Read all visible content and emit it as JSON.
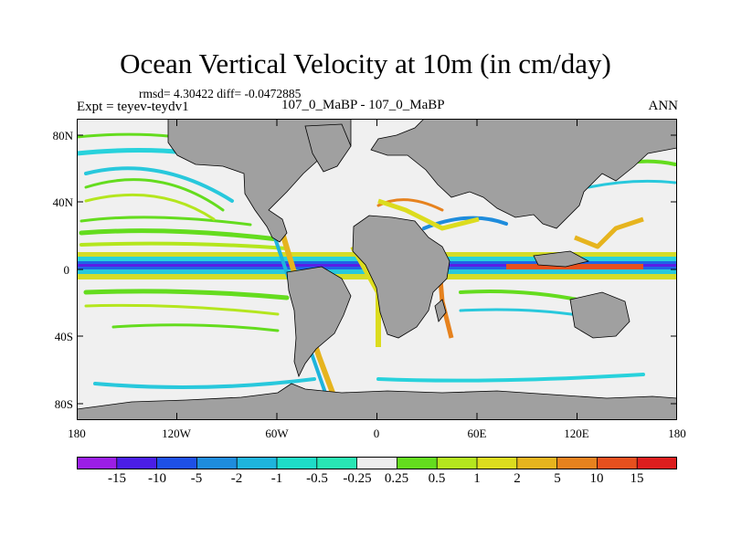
{
  "title": "Ocean Vertical Velocity at 10m (in cm/day)",
  "stats_text": "rmsd= 4.30422 diff= -0.0472885",
  "experiment_label": "Expt = teyev-teydv1",
  "runs_label": "107_0_MaBP - 107_0_MaBP",
  "season_label": "ANN",
  "y_ticks": [
    "80N",
    "40N",
    "0",
    "40S",
    "80S"
  ],
  "x_ticks": [
    "180",
    "120W",
    "60W",
    "0",
    "60E",
    "120E",
    "180"
  ],
  "colorbar": {
    "labels": [
      "-15",
      "-10",
      "-5",
      "-2",
      "-1",
      "-0.5",
      "-0.25",
      "0.25",
      "0.5",
      "1",
      "2",
      "5",
      "10",
      "15"
    ],
    "colors": [
      "#9b1ee6",
      "#4b1ee6",
      "#1e50e6",
      "#1e8cdc",
      "#1eb4dc",
      "#1edcc8",
      "#28e6b4",
      "#eeeeee",
      "#64dc1e",
      "#b4e61e",
      "#dcdc1e",
      "#e6b41e",
      "#e6821e",
      "#e6501e",
      "#dc1e1e"
    ]
  },
  "land_color": "#a0a0a0",
  "background_color": "#f0f0f0"
}
